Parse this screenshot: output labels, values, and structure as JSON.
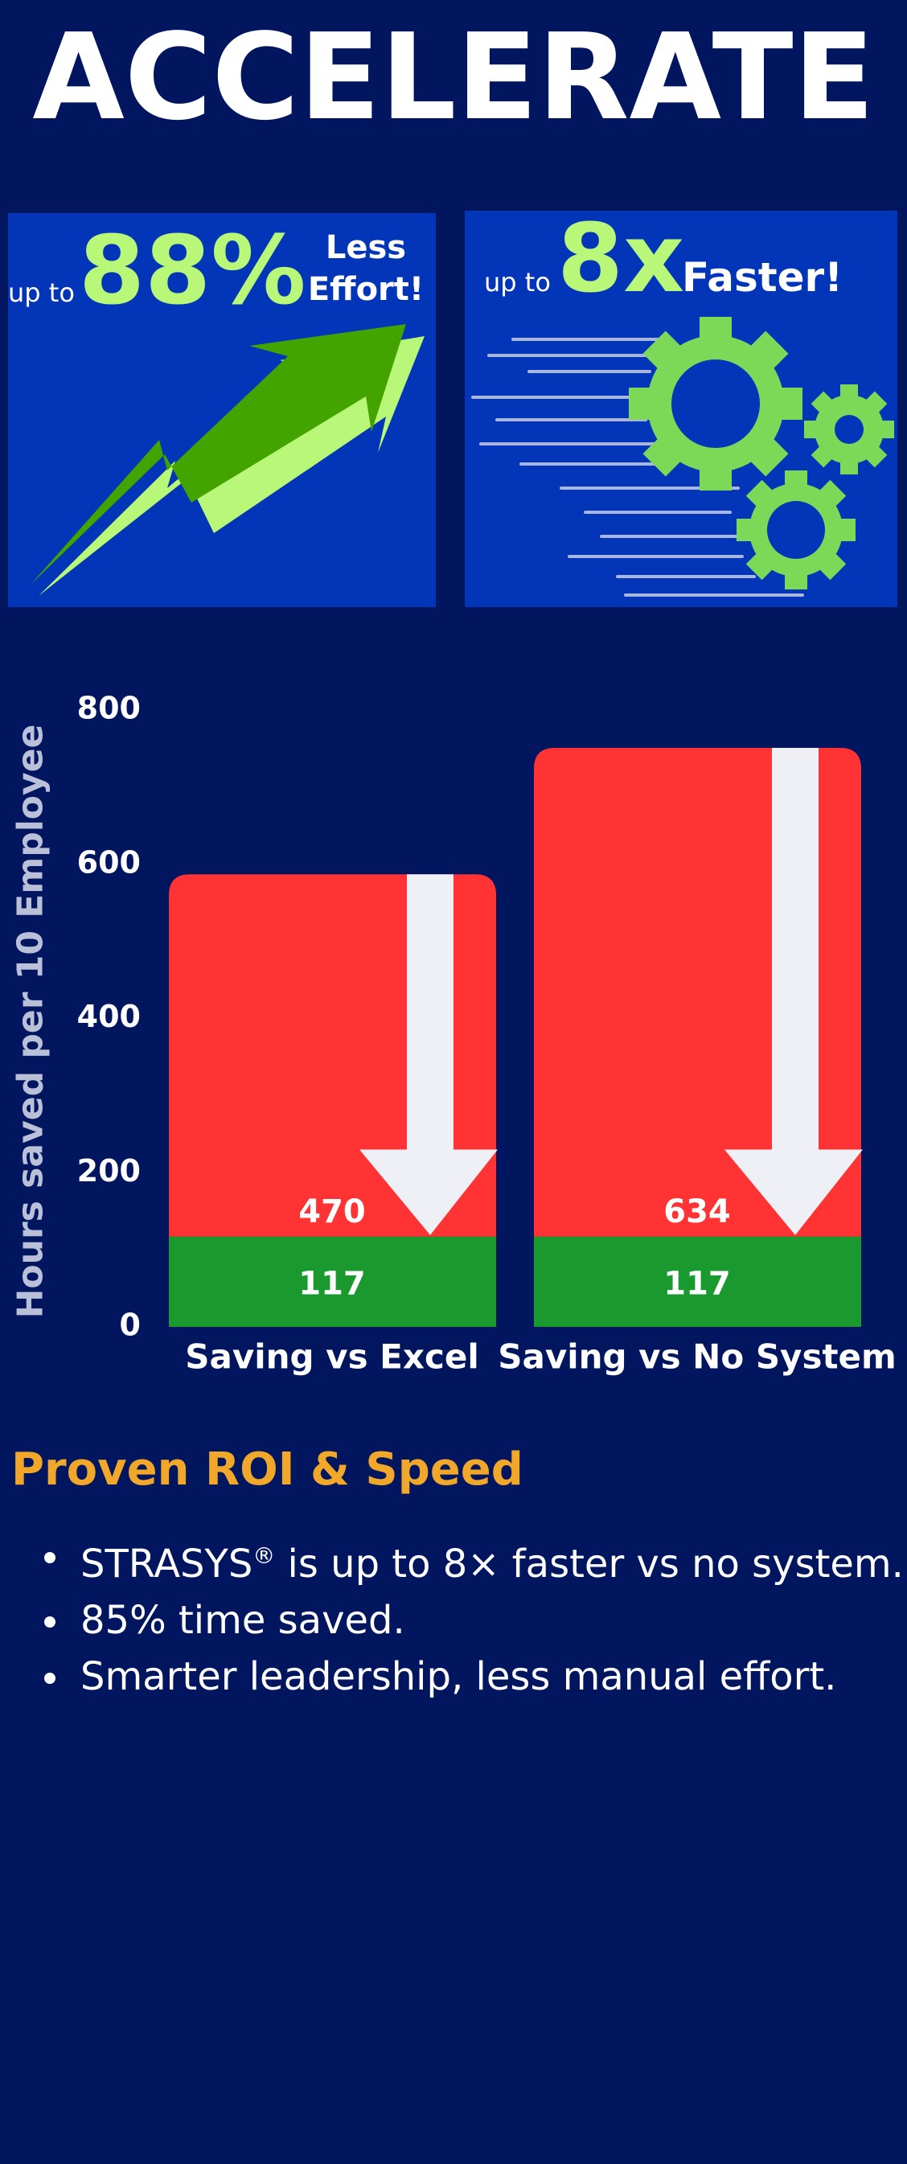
{
  "header": {
    "title": "ACCELERATE"
  },
  "card_effort": {
    "prefix": "up to",
    "value": "88%",
    "line1": "Less",
    "line2": "Effort!"
  },
  "card_speed": {
    "prefix": "up to",
    "value": "8x",
    "label": "Faster!"
  },
  "colors": {
    "background": "#021660",
    "card": "#0335b8",
    "green_light": "#b8f777",
    "green_dark": "#43a400",
    "gear": "#7cd957",
    "red": "#ff3333",
    "green_bar": "#1a9a2e",
    "arrow": "#eef0f5",
    "orange": "#f0a72a"
  },
  "chart_data": {
    "type": "bar",
    "ylabel": "Hours saved per 10 Employee",
    "ylim": [
      0,
      800
    ],
    "yticks": [
      0,
      200,
      400,
      600,
      800
    ],
    "categories": [
      "Saving vs Excel",
      "Saving vs No System"
    ],
    "series": [
      {
        "values": [
          117,
          117
        ]
      },
      {
        "values": [
          470,
          634
        ]
      }
    ],
    "grid": false,
    "legend": "none"
  },
  "roi": {
    "title": "Proven ROI & Speed",
    "bullet1_main": "STRASYS",
    "bullet1_mark": "®",
    "bullet1_rest": " is up to 8× faster vs no system.",
    "bullet2": "85% time saved.",
    "bullet3": "Smarter leadership, less manual effort."
  }
}
